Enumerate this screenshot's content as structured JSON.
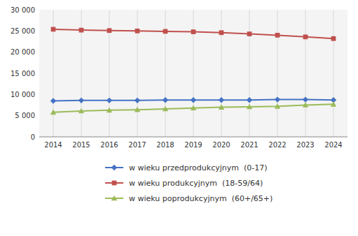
{
  "chart_data": {
    "type": "line",
    "x": [
      2014,
      2015,
      2016,
      2017,
      2018,
      2019,
      2020,
      2021,
      2022,
      2023,
      2024
    ],
    "xlim": [
      2013.5,
      2024.5
    ],
    "xticks": [
      2014,
      2015,
      2016,
      2017,
      2018,
      2019,
      2020,
      2021,
      2022,
      2023,
      2024
    ],
    "ylim": [
      0,
      30000
    ],
    "yticks": [
      0,
      {
        "value": 5000,
        "label": "5 000"
      },
      {
        "value": 10000,
        "label": "10 000"
      },
      {
        "value": 15000,
        "label": "15 000"
      },
      {
        "value": 20000,
        "label": "20 000"
      },
      {
        "value": 25000,
        "label": "25 000"
      },
      {
        "value": 30000,
        "label": "30 000"
      }
    ],
    "grid": "x",
    "legend": "bottom",
    "series": [
      {
        "name": "w wieku przedprodukcyjnym  (0-17)",
        "color": "#4472C4",
        "marker": "diamond",
        "values": [
          8500,
          8600,
          8600,
          8600,
          8700,
          8700,
          8700,
          8700,
          8800,
          8800,
          8700
        ]
      },
      {
        "name": "w wieku produkcyjnym  (18-59/64)",
        "color": "#C0504D",
        "marker": "square",
        "values": [
          25400,
          25200,
          25100,
          25000,
          24900,
          24800,
          24600,
          24300,
          24000,
          23600,
          23200
        ]
      },
      {
        "name": "w wieku poprodukcyjnym  (60+/65+)",
        "color": "#9BBB59",
        "marker": "triangle",
        "values": [
          5800,
          6100,
          6300,
          6400,
          6600,
          6800,
          7000,
          7100,
          7200,
          7500,
          7700
        ]
      }
    ]
  }
}
